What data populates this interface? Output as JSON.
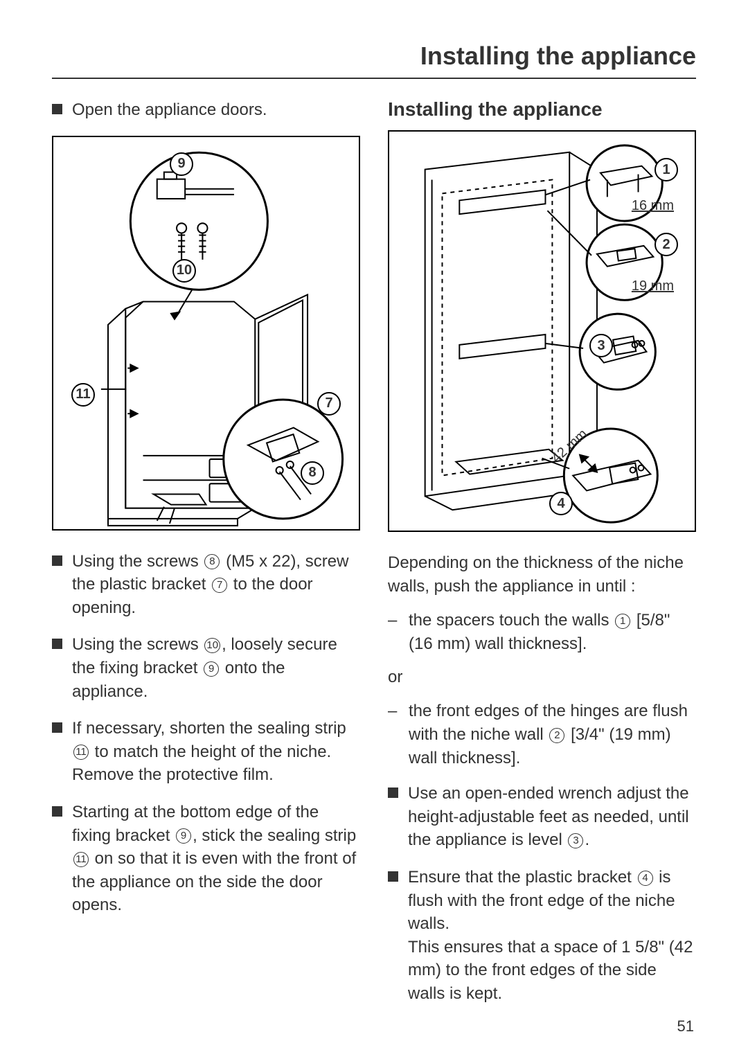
{
  "page_title": "Installing the appliance",
  "page_number": "51",
  "left": {
    "intro": "Open the appliance doors.",
    "figure": {
      "callouts": [
        "9",
        "10",
        "11",
        "7",
        "8"
      ]
    },
    "steps": [
      {
        "pre": "Using the screws ",
        "ref": "8",
        "mid": " (M5 x 22), screw the plastic bracket ",
        "ref2": "7",
        "post": " to the door opening."
      },
      {
        "pre": "Using the screws ",
        "ref": "10",
        "mid": ", loosely secure the fixing bracket ",
        "ref2": "9",
        "post": " onto the appliance."
      },
      {
        "pre": "If necessary, shorten the sealing strip ",
        "ref": "11",
        "mid": " to match the height of the niche. Remove the protective film.",
        "ref2": "",
        "post": ""
      },
      {
        "pre": "Starting at the bottom edge of the fixing bracket ",
        "ref": "9",
        "mid": ", stick the sealing strip ",
        "ref2": "11",
        "post": " on so that it is even with the front of the appliance on the side the door opens."
      }
    ]
  },
  "right": {
    "heading": "Installing the appliance",
    "figure": {
      "callouts": [
        "1",
        "2",
        "3",
        "4"
      ],
      "dims": {
        "d1": "16 mm",
        "d2": "19 mm",
        "d4": "42 mm"
      }
    },
    "intro": "Depending on the thickness of the niche walls, push the appliance in until :",
    "dash1": {
      "pre": "the spacers touch the walls ",
      "ref": "1",
      "post": " [5/8\" (16 mm) wall thickness]."
    },
    "or": "or",
    "dash2": {
      "pre": "the front edges of the hinges are flush with the niche wall ",
      "ref": "2",
      "post": " [3/4\" (19 mm) wall thickness]."
    },
    "steps": [
      {
        "pre": "Use an open-ended wrench adjust the height-adjustable feet as needed, until the appliance is level ",
        "ref": "3",
        "post": "."
      },
      {
        "pre": "Ensure that the plastic bracket ",
        "ref": "4",
        "post": " is flush with the front edge of the niche walls.\nThis ensures that  a space of 1 5/8\" (42 mm) to the front edges of the side walls is kept."
      }
    ]
  }
}
